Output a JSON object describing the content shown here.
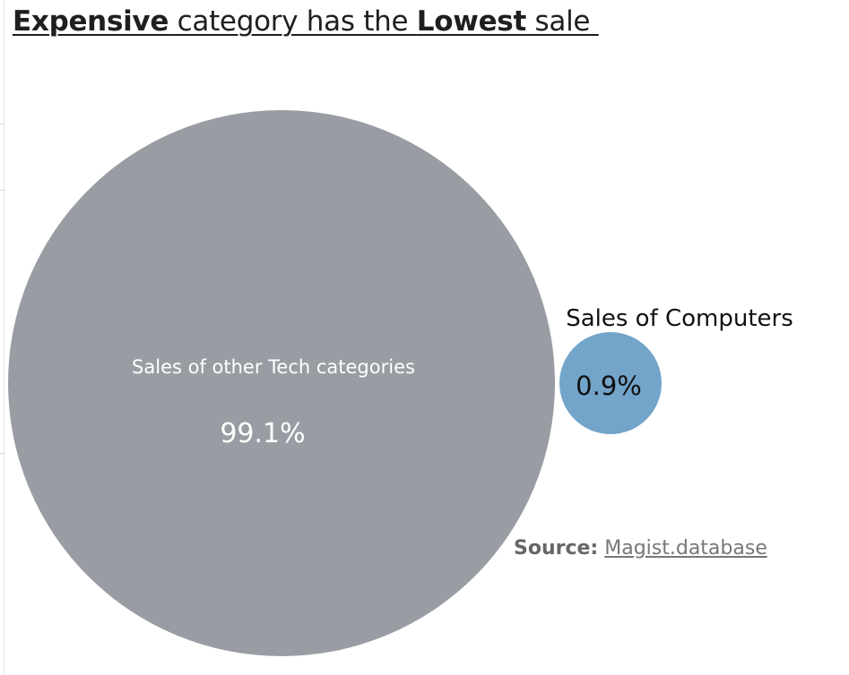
{
  "title": {
    "part1": "Expensive",
    "part2": " category has the ",
    "part3": "Lowest",
    "part4": " sale "
  },
  "source": {
    "label": "Source:",
    "link": "Magist.database"
  },
  "colors": {
    "others": "#999da3",
    "computers": "#73a4c9",
    "others_text": "#ffffff",
    "computers_text": "#111111"
  },
  "chart_data": {
    "type": "bubble",
    "unit": "%",
    "items": [
      {
        "label": "Sales of other Tech categories",
        "value": 99.1,
        "value_label": "99.1%"
      },
      {
        "label": "Sales of Computers",
        "value": 0.9,
        "value_label": "0.9%"
      }
    ]
  }
}
